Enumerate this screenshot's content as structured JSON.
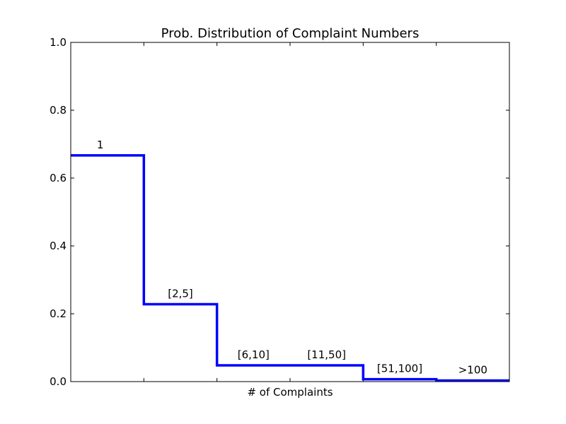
{
  "chart_data": {
    "type": "line",
    "step": true,
    "title": "Prob. Distribution of Complaint Numbers",
    "xlabel": "# of Complaints",
    "ylabel": "",
    "ylim": [
      0,
      1.0
    ],
    "xlim": [
      0,
      6
    ],
    "yticks": [
      0.0,
      0.2,
      0.4,
      0.6,
      0.8,
      1.0
    ],
    "ytick_labels": [
      "0.0",
      "0.2",
      "0.4",
      "0.6",
      "0.8",
      "1.0"
    ],
    "xticks": [
      1,
      2,
      3,
      4,
      5
    ],
    "xtick_labels": [],
    "grid": false,
    "line_color": "#0000ff",
    "categories": [
      "1",
      "[2,5]",
      "[6,10]",
      "[11,50]",
      "[51,100]",
      ">100"
    ],
    "series": [
      {
        "values": [
          0.667,
          0.228,
          0.048,
          0.048,
          0.007,
          0.003
        ]
      }
    ]
  }
}
